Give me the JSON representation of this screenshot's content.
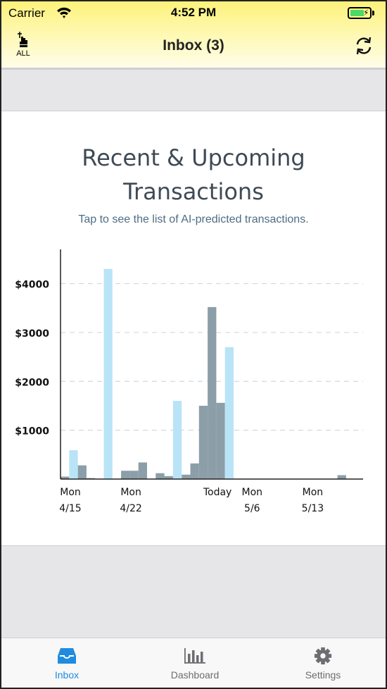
{
  "status_bar": {
    "carrier": "Carrier",
    "time": "4:52 PM"
  },
  "nav": {
    "left_label": "ALL",
    "title": "Inbox (3)"
  },
  "card": {
    "title_line1": "Recent & Upcoming",
    "title_line2": "Transactions",
    "subtitle": "Tap to see the list of AI-predicted transactions."
  },
  "colors": {
    "accent": "#1f8ce0",
    "past_bar": "#8c9ea8",
    "predicted_bar": "#b9e4f7",
    "header_yellow": "#fdf27a"
  },
  "chart_data": {
    "type": "bar",
    "x_ticks": [
      {
        "line1": "Mon",
        "line2": "4/15",
        "day": 0
      },
      {
        "line1": "Mon",
        "line2": "4/22",
        "day": 7
      },
      {
        "line1": "Today",
        "line2": "",
        "day": 17
      },
      {
        "line1": "Mon",
        "line2": "5/6",
        "day": 21
      },
      {
        "line1": "Mon",
        "line2": "5/13",
        "day": 28
      }
    ],
    "y_ticks": [
      "$1000",
      "$2000",
      "$3000",
      "$4000"
    ],
    "y_tick_values": [
      1000,
      2000,
      3000,
      4000
    ],
    "ylim": [
      0,
      4700
    ],
    "grid": "horizontal dashed",
    "series": [
      {
        "key": "actual",
        "points": [
          {
            "day": 0,
            "value": 50
          },
          {
            "day": 2,
            "value": 280
          },
          {
            "day": 3,
            "value": 20
          },
          {
            "day": 7,
            "value": 170
          },
          {
            "day": 8,
            "value": 170
          },
          {
            "day": 9,
            "value": 340
          },
          {
            "day": 11,
            "value": 120
          },
          {
            "day": 12,
            "value": 60
          },
          {
            "day": 14,
            "value": 90
          },
          {
            "day": 15,
            "value": 320
          },
          {
            "day": 16,
            "value": 1500
          },
          {
            "day": 17,
            "value": 3520
          },
          {
            "day": 18,
            "value": 1560
          },
          {
            "day": 32,
            "value": 80
          }
        ]
      },
      {
        "key": "predicted",
        "points": [
          {
            "day": 1,
            "value": 590
          },
          {
            "day": 5,
            "value": 4300
          },
          {
            "day": 13,
            "value": 1600
          },
          {
            "day": 19,
            "value": 2700
          }
        ]
      }
    ]
  },
  "tabbar": {
    "items": [
      {
        "label": "Inbox",
        "icon": "inbox-tray-icon"
      },
      {
        "label": "Dashboard",
        "icon": "bar-chart-icon"
      },
      {
        "label": "Settings",
        "icon": "gear-icon"
      }
    ]
  }
}
